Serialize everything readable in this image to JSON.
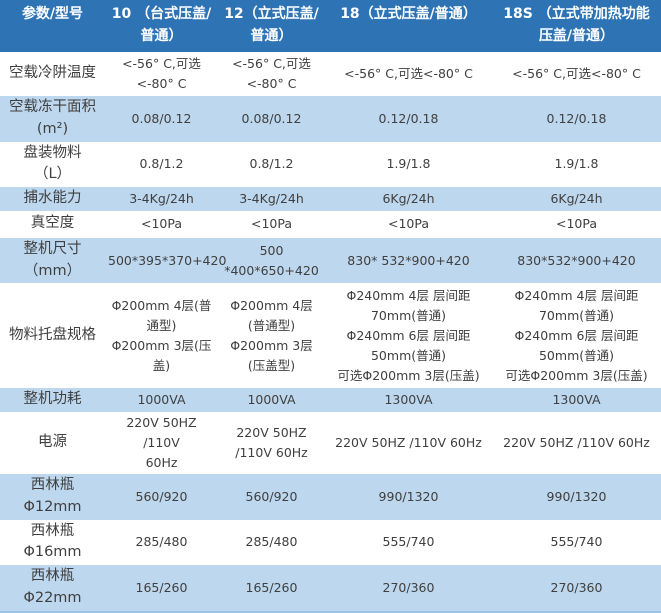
{
  "colors": {
    "header_bg": "#2E74B5",
    "row_alt_bg": "#BDD7EE",
    "row_bg": "#FFFFFF",
    "header_text": "#FFFFFF",
    "body_text": "#3F3F3F",
    "bottom_border": "#9CC3E5"
  },
  "table": {
    "header": [
      "参数/型号",
      "10 （台式压盖/普通）",
      "12（立式压盖/普通）",
      "18（立式压盖/普通）",
      "18S （立式带加热功能\n压盖/普通）"
    ],
    "rows": [
      {
        "label": "空载冷阱温度",
        "values": [
          "<-56° C,可选\n<-80° C",
          "<-56° C,可选\n<-80° C",
          "<-56° C,可选<-80° C",
          "<-56° C,可选<-80° C"
        ]
      },
      {
        "label": "空载冻干面积\n(m²)",
        "values": [
          "0.08/0.12",
          "0.08/0.12",
          "0.12/0.18",
          "0.12/0.18"
        ]
      },
      {
        "label": "盘装物料\n（L）",
        "values": [
          "0.8/1.2",
          "0.8/1.2",
          "1.9/1.8",
          "1.9/1.8"
        ]
      },
      {
        "label": "捕水能力",
        "values": [
          "3-4Kg/24h",
          "3-4Kg/24h",
          "6Kg/24h",
          "6Kg/24h"
        ]
      },
      {
        "label": "真空度",
        "values": [
          "<10Pa",
          "<10Pa",
          "<10Pa",
          "<10Pa"
        ]
      },
      {
        "label": "整机尺寸\n（mm）",
        "values": [
          "500*395*370+420",
          "500\n*400*650+420",
          "830* 532*900+420",
          "830*532*900+420"
        ]
      },
      {
        "label": "物料托盘规格",
        "values": [
          "Φ200mm 4层(普通型)\nΦ200mm 3层(压盖)",
          "Φ200mm 4层\n(普通型)\nΦ200mm 3层\n(压盖型)",
          "Φ240mm 4层  层间距\n70mm(普通)\nΦ240mm 6层  层间距\n50mm(普通)\n可选Φ200mm 3层(压盖)",
          "Φ240mm 4层  层间距\n70mm(普通)\nΦ240mm 6层  层间距\n50mm(普通)\n可选Φ200mm 3层(压盖)"
        ]
      },
      {
        "label": "整机功耗",
        "values": [
          "1000VA",
          "1000VA",
          "1300VA",
          "1300VA"
        ]
      },
      {
        "label": "电源",
        "values": [
          "220V  50HZ  /110V\n60Hz",
          "220V  50HZ\n/110V  60Hz",
          "220V  50HZ  /110V  60Hz",
          "220V  50HZ  /110V  60Hz"
        ]
      },
      {
        "label": "西林瓶\nΦ12mm",
        "values": [
          "560/920",
          "560/920",
          "990/1320",
          "990/1320"
        ]
      },
      {
        "label": "西林瓶\nΦ16mm",
        "values": [
          "285/480",
          "285/480",
          "555/740",
          "555/740"
        ]
      },
      {
        "label": "西林瓶\nΦ22mm",
        "values": [
          "165/260",
          "165/260",
          "270/360",
          "270/360"
        ]
      }
    ]
  }
}
